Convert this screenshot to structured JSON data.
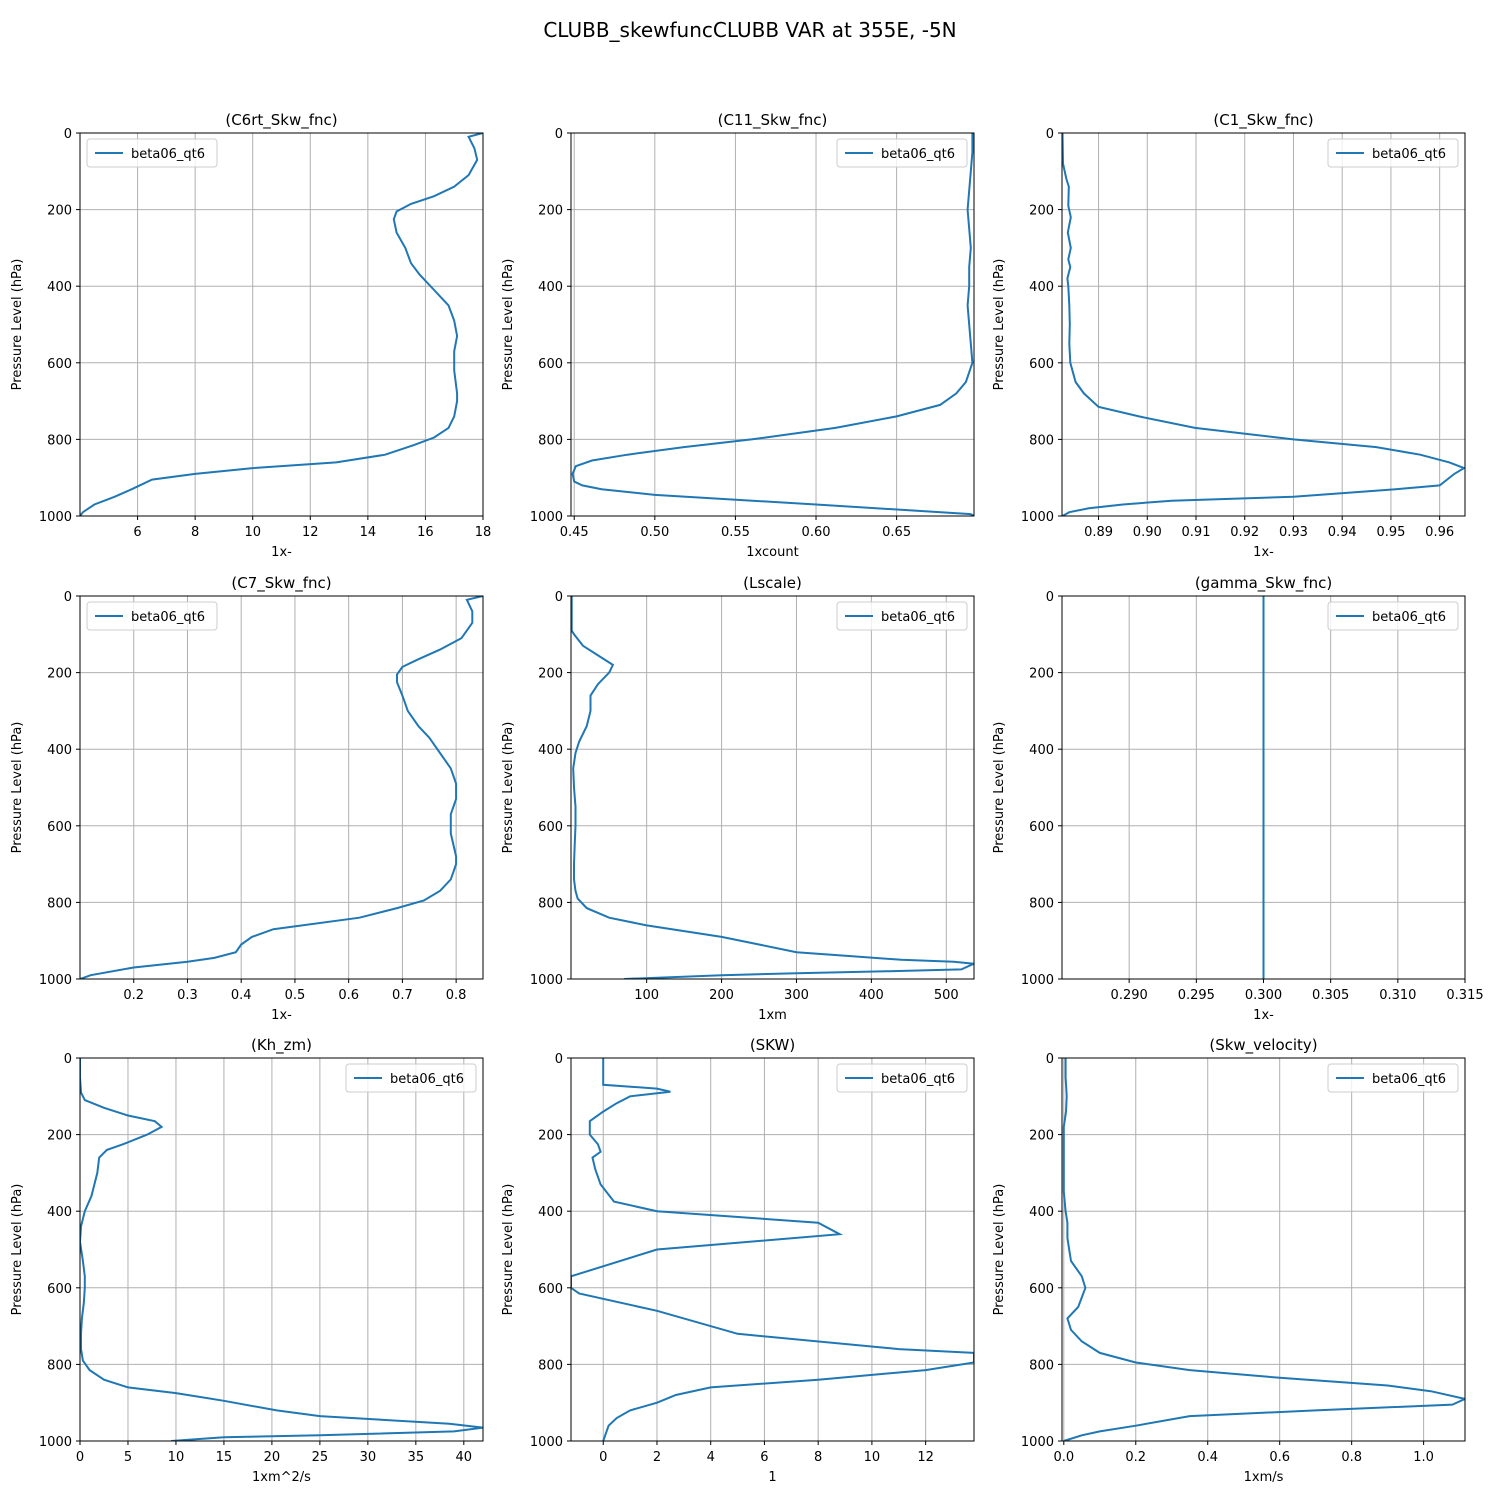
{
  "figure": {
    "title": "CLUBB_skewfuncCLUBB VAR at 355E, -5N",
    "line_color": "#1f77b4",
    "grid_color": "#b0b0b0"
  },
  "chart_data": [
    {
      "type": "line",
      "title": "(C6rt_Skw_fnc)",
      "xlabel": "1x-",
      "ylabel": "Pressure Level (hPa)",
      "xlim": [
        4,
        18
      ],
      "ylim": [
        1000,
        0
      ],
      "xticks": [
        6,
        8,
        10,
        12,
        14,
        16,
        18
      ],
      "xtick_labels": [
        "6",
        "8",
        "10",
        "12",
        "14",
        "16",
        "18"
      ],
      "yticks": [
        0,
        200,
        400,
        600,
        800,
        1000
      ],
      "ytick_labels": [
        "0",
        "200",
        "400",
        "600",
        "800",
        "1000"
      ],
      "legend": "upper left",
      "series": [
        {
          "name": "beta06_qt6",
          "x": [
            18.0,
            17.5,
            17.7,
            17.8,
            17.5,
            17.0,
            16.3,
            15.5,
            15.0,
            14.9,
            15.0,
            15.3,
            15.5,
            15.8,
            16.3,
            16.8,
            17.0,
            17.1,
            17.0,
            17.0,
            17.1,
            17.1,
            17.0,
            16.8,
            16.3,
            15.6,
            14.6,
            12.9,
            10.0,
            8.0,
            6.5,
            5.8,
            5.2,
            4.5,
            4.1,
            4.0
          ],
          "y": [
            0,
            10,
            40,
            70,
            110,
            140,
            165,
            185,
            205,
            225,
            260,
            300,
            340,
            370,
            410,
            450,
            490,
            530,
            570,
            620,
            680,
            700,
            740,
            770,
            795,
            815,
            840,
            860,
            875,
            890,
            905,
            930,
            950,
            970,
            990,
            1000
          ]
        }
      ]
    },
    {
      "type": "line",
      "title": "(C11_Skw_fnc)",
      "xlabel": "1xcount",
      "ylabel": "Pressure Level (hPa)",
      "xlim": [
        0.448,
        0.698
      ],
      "ylim": [
        1000,
        0
      ],
      "xticks": [
        0.45,
        0.5,
        0.55,
        0.6,
        0.65
      ],
      "xtick_labels": [
        "0.45",
        "0.50",
        "0.55",
        "0.60",
        "0.65"
      ],
      "yticks": [
        0,
        200,
        400,
        600,
        800,
        1000
      ],
      "ytick_labels": [
        "0",
        "200",
        "400",
        "600",
        "800",
        "1000"
      ],
      "legend": "upper right",
      "series": [
        {
          "name": "beta06_qt6",
          "x": [
            0.697,
            0.697,
            0.696,
            0.695,
            0.694,
            0.695,
            0.696,
            0.695,
            0.695,
            0.694,
            0.695,
            0.696,
            0.697,
            0.693,
            0.687,
            0.677,
            0.65,
            0.612,
            0.56,
            0.518,
            0.483,
            0.461,
            0.451,
            0.449,
            0.45,
            0.455,
            0.467,
            0.5,
            0.6,
            0.696,
            0.698
          ],
          "y": [
            0,
            50,
            100,
            150,
            200,
            250,
            300,
            350,
            400,
            450,
            500,
            550,
            600,
            650,
            680,
            710,
            740,
            770,
            800,
            820,
            840,
            855,
            870,
            890,
            910,
            920,
            930,
            945,
            970,
            995,
            1000
          ]
        }
      ]
    },
    {
      "type": "line",
      "title": "(C1_Skw_fnc)",
      "xlabel": "1x-",
      "ylabel": "Pressure Level (hPa)",
      "xlim": [
        0.8825,
        0.9652
      ],
      "ylim": [
        1000,
        0
      ],
      "xticks": [
        0.89,
        0.9,
        0.91,
        0.92,
        0.93,
        0.94,
        0.95,
        0.96
      ],
      "xtick_labels": [
        "0.89",
        "0.90",
        "0.91",
        "0.92",
        "0.93",
        "0.94",
        "0.95",
        "0.96"
      ],
      "yticks": [
        0,
        200,
        400,
        600,
        800,
        1000
      ],
      "ytick_labels": [
        "0",
        "200",
        "400",
        "600",
        "800",
        "1000"
      ],
      "legend": "upper right",
      "series": [
        {
          "name": "beta06_qt6",
          "x": [
            0.8826,
            0.8827,
            0.8834,
            0.8839,
            0.8838,
            0.8843,
            0.8837,
            0.8843,
            0.8838,
            0.8842,
            0.8836,
            0.8838,
            0.884,
            0.8841,
            0.884,
            0.8842,
            0.8853,
            0.887,
            0.89,
            0.8983,
            0.9098,
            0.93,
            0.947,
            0.956,
            0.962,
            0.965,
            0.963,
            0.96,
            0.951,
            0.93,
            0.905,
            0.895,
            0.888,
            0.884,
            0.8826
          ],
          "y": [
            0,
            80,
            120,
            140,
            190,
            220,
            260,
            300,
            330,
            350,
            380,
            400,
            450,
            500,
            550,
            600,
            650,
            680,
            715,
            740,
            770,
            800,
            820,
            840,
            860,
            875,
            890,
            920,
            930,
            950,
            960,
            970,
            980,
            990,
            1000
          ]
        }
      ]
    },
    {
      "type": "line",
      "title": "(C7_Skw_fnc)",
      "xlabel": "1x-",
      "ylabel": "Pressure Level (hPa)",
      "xlim": [
        0.1,
        0.85
      ],
      "ylim": [
        1000,
        0
      ],
      "xticks": [
        0.2,
        0.3,
        0.4,
        0.5,
        0.6,
        0.7,
        0.8
      ],
      "xtick_labels": [
        "0.2",
        "0.3",
        "0.4",
        "0.5",
        "0.6",
        "0.7",
        "0.8"
      ],
      "yticks": [
        0,
        200,
        400,
        600,
        800,
        1000
      ],
      "ytick_labels": [
        "0",
        "200",
        "400",
        "600",
        "800",
        "1000"
      ],
      "legend": "upper left",
      "series": [
        {
          "name": "beta06_qt6",
          "x": [
            0.85,
            0.82,
            0.83,
            0.83,
            0.81,
            0.77,
            0.73,
            0.7,
            0.69,
            0.69,
            0.7,
            0.71,
            0.73,
            0.75,
            0.77,
            0.79,
            0.8,
            0.8,
            0.79,
            0.79,
            0.8,
            0.8,
            0.79,
            0.77,
            0.74,
            0.69,
            0.62,
            0.46,
            0.42,
            0.4,
            0.39,
            0.35,
            0.3,
            0.2,
            0.12,
            0.1
          ],
          "y": [
            0,
            10,
            40,
            70,
            110,
            140,
            165,
            185,
            205,
            225,
            260,
            300,
            340,
            370,
            410,
            450,
            490,
            530,
            570,
            620,
            680,
            700,
            740,
            770,
            795,
            815,
            840,
            870,
            890,
            910,
            930,
            945,
            955,
            970,
            990,
            1000
          ]
        }
      ]
    },
    {
      "type": "line",
      "title": "(Lscale)",
      "xlabel": "1xm",
      "ylabel": "Pressure Level (hPa)",
      "xlim": [
        -1,
        537
      ],
      "ylim": [
        1000,
        0
      ],
      "xticks": [
        100,
        200,
        300,
        400,
        500
      ],
      "xtick_labels": [
        "100",
        "200",
        "300",
        "400",
        "500"
      ],
      "yticks": [
        0,
        200,
        400,
        600,
        800,
        1000
      ],
      "ytick_labels": [
        "0",
        "200",
        "400",
        "600",
        "800",
        "1000"
      ],
      "legend": "upper right",
      "series": [
        {
          "name": "beta06_qt6",
          "x": [
            0,
            0,
            0,
            3,
            15,
            35,
            55,
            50,
            35,
            25,
            25,
            20,
            10,
            5,
            2,
            3,
            5,
            5,
            4,
            3,
            3,
            5,
            8,
            20,
            50,
            100,
            200,
            250,
            300,
            370,
            440,
            510,
            537,
            520,
            420,
            300,
            200,
            70
          ],
          "y": [
            0,
            50,
            90,
            100,
            130,
            155,
            180,
            200,
            230,
            260,
            300,
            340,
            380,
            410,
            450,
            500,
            550,
            600,
            650,
            700,
            740,
            770,
            790,
            815,
            840,
            860,
            890,
            910,
            930,
            940,
            950,
            955,
            960,
            975,
            980,
            985,
            990,
            1000
          ]
        }
      ]
    },
    {
      "type": "line",
      "title": "(gamma_Skw_fnc)",
      "xlabel": "1x-",
      "ylabel": "Pressure Level (hPa)",
      "xlim": [
        0.285,
        0.315
      ],
      "ylim": [
        1000,
        0
      ],
      "xticks": [
        0.29,
        0.295,
        0.3,
        0.305,
        0.31,
        0.315
      ],
      "xtick_labels": [
        "0.290",
        "0.295",
        "0.300",
        "0.305",
        "0.310",
        "0.315"
      ],
      "yticks": [
        0,
        200,
        400,
        600,
        800,
        1000
      ],
      "ytick_labels": [
        "0",
        "200",
        "400",
        "600",
        "800",
        "1000"
      ],
      "legend": "upper right",
      "series": [
        {
          "name": "beta06_qt6",
          "x": [
            0.3,
            0.3
          ],
          "y": [
            0,
            1000
          ]
        }
      ]
    },
    {
      "type": "line",
      "title": "(Kh_zm)",
      "xlabel": "1xm^2/s",
      "ylabel": "Pressure Level (hPa)",
      "xlim": [
        0,
        42
      ],
      "ylim": [
        1000,
        0
      ],
      "xticks": [
        0,
        5,
        10,
        15,
        20,
        25,
        30,
        35,
        40
      ],
      "xtick_labels": [
        "0",
        "5",
        "10",
        "15",
        "20",
        "25",
        "30",
        "35",
        "40"
      ],
      "yticks": [
        0,
        200,
        400,
        600,
        800,
        1000
      ],
      "ytick_labels": [
        "0",
        "200",
        "400",
        "600",
        "800",
        "1000"
      ],
      "legend": "upper right",
      "series": [
        {
          "name": "beta06_qt6",
          "x": [
            0,
            0,
            0.1,
            0.5,
            2.5,
            5.0,
            7.8,
            8.5,
            7.0,
            4.5,
            2.8,
            2.0,
            1.8,
            1.5,
            1.2,
            0.5,
            0.1,
            0,
            0.3,
            0.5,
            0.5,
            0.4,
            0.2,
            0.1,
            0.1,
            0.3,
            1.0,
            2.5,
            5.0,
            10.0,
            15.0,
            20.5,
            25.0,
            38.5,
            42.0,
            39.0,
            25.0,
            15.0,
            9.5
          ],
          "y": [
            0,
            50,
            90,
            110,
            130,
            150,
            165,
            180,
            200,
            225,
            240,
            260,
            300,
            330,
            360,
            400,
            440,
            480,
            530,
            570,
            600,
            640,
            680,
            720,
            760,
            790,
            815,
            840,
            860,
            875,
            895,
            920,
            935,
            955,
            965,
            975,
            985,
            990,
            1000
          ]
        }
      ]
    },
    {
      "type": "line",
      "title": "(SKW)",
      "xlabel": "1",
      "ylabel": "Pressure Level (hPa)",
      "xlim": [
        -1.2,
        13.8
      ],
      "ylim": [
        1000,
        0
      ],
      "xticks": [
        0,
        2,
        4,
        6,
        8,
        10,
        12
      ],
      "xtick_labels": [
        "0",
        "2",
        "4",
        "6",
        "8",
        "10",
        "12"
      ],
      "yticks": [
        0,
        200,
        400,
        600,
        800,
        1000
      ],
      "ytick_labels": [
        "0",
        "200",
        "400",
        "600",
        "800",
        "1000"
      ],
      "legend": "upper right",
      "series": [
        {
          "name": "beta06_qt6",
          "x": [
            0,
            0,
            2.0,
            2.5,
            1.0,
            0.5,
            0,
            -0.5,
            -0.5,
            -0.2,
            -0.1,
            -0.4,
            -0.3,
            -0.1,
            0.4,
            2.0,
            8.0,
            8.8,
            2.0,
            -1.2,
            -1.2,
            -0.9,
            2.0,
            5.0,
            11.0,
            13.8,
            13.8,
            12.0,
            8.0,
            4.0,
            2.7,
            2.0,
            1.0,
            0.5,
            0.2,
            0
          ],
          "y": [
            0,
            70,
            80,
            88,
            100,
            118,
            140,
            165,
            200,
            225,
            245,
            260,
            290,
            330,
            375,
            400,
            430,
            460,
            500,
            570,
            600,
            615,
            660,
            720,
            760,
            770,
            795,
            815,
            840,
            860,
            880,
            900,
            920,
            940,
            960,
            1000
          ]
        }
      ]
    },
    {
      "type": "line",
      "title": "(Skw_velocity)",
      "xlabel": "1xm/s",
      "ylabel": "Pressure Level (hPa)",
      "xlim": [
        -0.005,
        1.115
      ],
      "ylim": [
        1000,
        0
      ],
      "xticks": [
        0.0,
        0.2,
        0.4,
        0.6,
        0.8,
        1.0
      ],
      "xtick_labels": [
        "0.0",
        "0.2",
        "0.4",
        "0.6",
        "0.8",
        "1.0"
      ],
      "yticks": [
        0,
        200,
        400,
        600,
        800,
        1000
      ],
      "ytick_labels": [
        "0",
        "200",
        "400",
        "600",
        "800",
        "1000"
      ],
      "legend": "upper right",
      "series": [
        {
          "name": "beta06_qt6",
          "x": [
            0.005,
            0.005,
            0.008,
            0.006,
            0,
            0,
            0,
            0,
            0.005,
            0.01,
            0.01,
            0.02,
            0.05,
            0.06,
            0.04,
            0.01,
            0.02,
            0.05,
            0.1,
            0.2,
            0.35,
            0.6,
            0.9,
            1.02,
            1.115,
            1.08,
            0.7,
            0.35,
            0.2,
            0.1,
            0.05,
            0
          ],
          "y": [
            0,
            50,
            100,
            140,
            180,
            250,
            300,
            350,
            400,
            430,
            470,
            530,
            570,
            600,
            650,
            680,
            710,
            740,
            770,
            795,
            815,
            835,
            855,
            870,
            890,
            905,
            920,
            935,
            960,
            975,
            985,
            1000
          ]
        }
      ]
    }
  ]
}
